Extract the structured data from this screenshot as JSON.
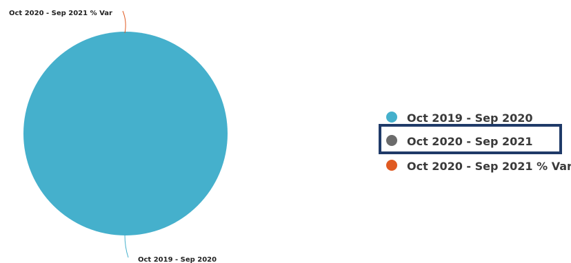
{
  "colors": {
    "series_a": "#45b0cc",
    "series_b": "#6b6b6b",
    "series_c": "#e05a22",
    "highlight_box": "#1f3a68"
  },
  "chart_data": {
    "type": "pie",
    "title": "",
    "slices": [
      {
        "label": "Oct 2019 - Sep 2020",
        "value": 100,
        "color": "#45b0cc"
      },
      {
        "label": "Oct 2020 - Sep 2021",
        "value": 0,
        "color": "#6b6b6b"
      },
      {
        "label": "Oct 2020 - Sep 2021 % Var",
        "value": 0,
        "color": "#e05a22"
      }
    ],
    "legend": {
      "placement": "right",
      "highlighted": "Oct 2020 - Sep 2021",
      "entries": [
        "Oct 2019 - Sep 2020",
        "Oct 2020 - Sep 2021",
        "Oct 2020 - Sep 2021 % Var"
      ]
    }
  }
}
